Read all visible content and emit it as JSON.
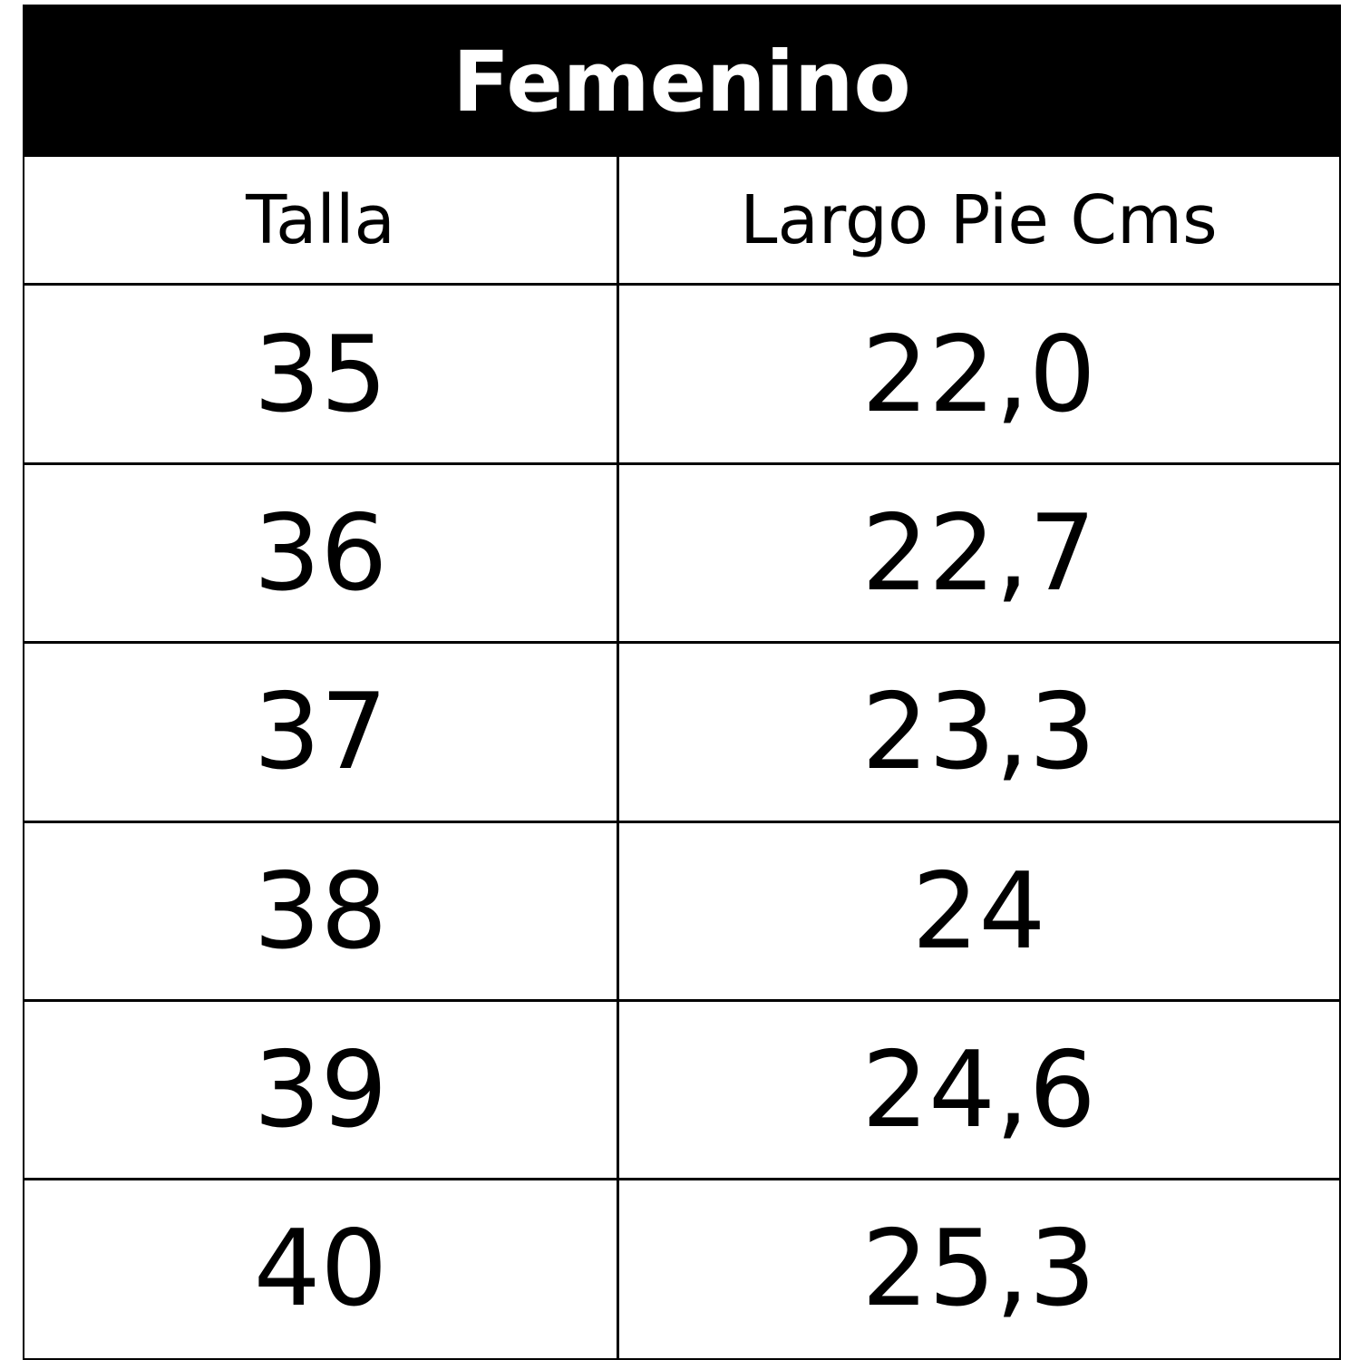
{
  "title": "Femenino",
  "table": {
    "headers": [
      "Talla",
      "Largo Pie Cms"
    ],
    "rows": [
      [
        "35",
        "22,0"
      ],
      [
        "36",
        "22,7"
      ],
      [
        "37",
        "23,3"
      ],
      [
        "38",
        "24"
      ],
      [
        "39",
        "24,6"
      ],
      [
        "40",
        "25,3"
      ]
    ]
  }
}
